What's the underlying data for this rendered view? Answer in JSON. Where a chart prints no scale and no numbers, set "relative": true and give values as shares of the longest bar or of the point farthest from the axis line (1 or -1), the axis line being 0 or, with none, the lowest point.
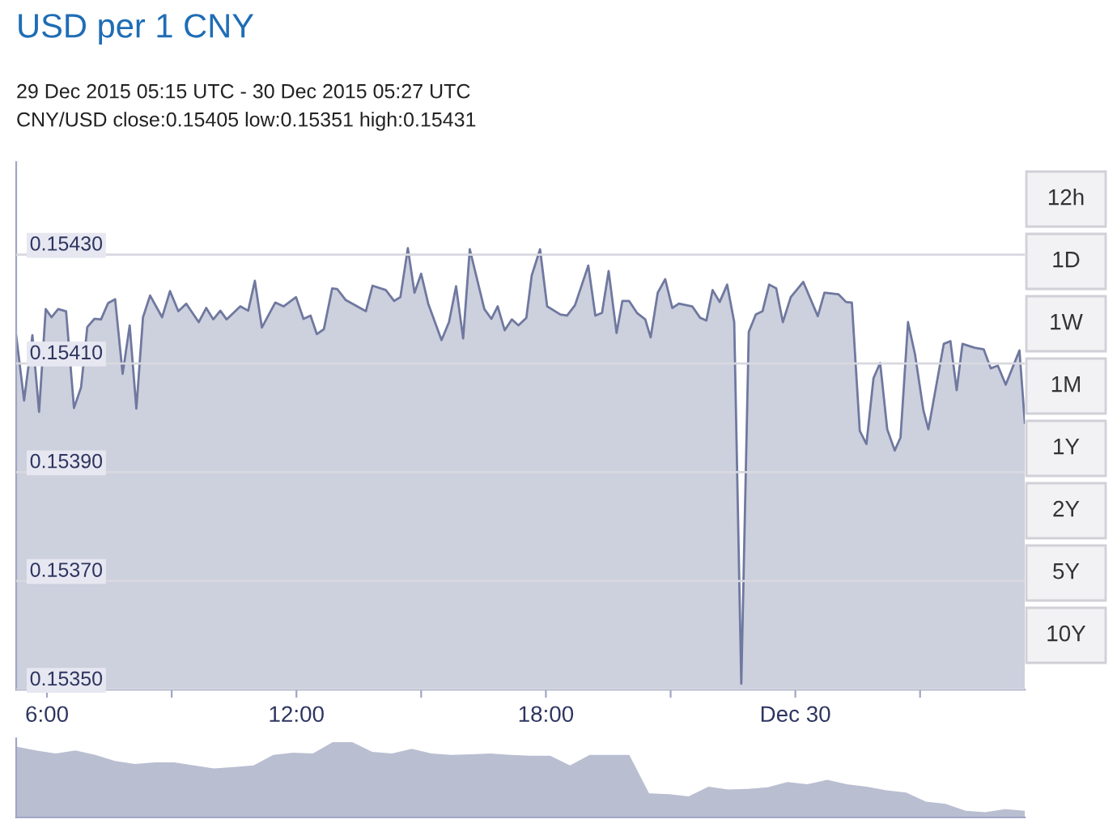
{
  "chart_data": [
    {
      "type": "area",
      "title": "USD per 1 CNY",
      "subtitle": "29 Dec 2015 05:15 UTC - 30 Dec 2015 05:27 UTC",
      "annotations": [
        "CNY/USD close:0.15405 low:0.15351 high:0.15431",
        "12h",
        "1D",
        "1W",
        "1M",
        "1Y",
        "2Y",
        "5Y",
        "10Y"
      ],
      "x": [
        5.26,
        5.45,
        5.65,
        5.81,
        5.97,
        6.11,
        6.27,
        6.46,
        6.65,
        6.82,
        6.97,
        7.14,
        7.3,
        7.47,
        7.64,
        7.82,
        7.99,
        8.15,
        8.31,
        8.48,
        8.77,
        8.96,
        9.16,
        9.35,
        9.65,
        9.83,
        10.0,
        10.17,
        10.32,
        10.65,
        10.84,
        11.0,
        11.17,
        11.49,
        11.69,
        11.99,
        12.17,
        12.34,
        12.49,
        12.66,
        12.86,
        12.98,
        13.18,
        13.67,
        13.83,
        14.15,
        14.35,
        14.5,
        14.68,
        14.84,
        15.0,
        15.17,
        15.49,
        15.67,
        15.84,
        16.01,
        16.17,
        16.52,
        16.69,
        16.84,
        17.01,
        17.18,
        17.34,
        17.53,
        17.66,
        17.86,
        18.03,
        18.35,
        18.51,
        18.7,
        19.02,
        19.19,
        19.35,
        19.51,
        19.7,
        19.84,
        20.0,
        20.19,
        20.39,
        20.52,
        20.69,
        20.87,
        21.04,
        21.2,
        21.52,
        21.71,
        21.86,
        22.01,
        22.18,
        22.36,
        22.53,
        22.7,
        22.88,
        23.05,
        23.21,
        23.37,
        23.54,
        23.7,
        23.89,
        24.19,
        24.54,
        24.7,
        25.04,
        25.22,
        25.36,
        25.55,
        25.71,
        25.88,
        26.04,
        26.21,
        26.39,
        26.53,
        26.71,
        26.88,
        27.08,
        27.2,
        27.4,
        27.57,
        27.73,
        27.88,
        28.02,
        28.31,
        28.53,
        28.7,
        28.87,
        29.06,
        29.39,
        29.52
      ],
      "series": [
        {
          "color": "#6f789f",
          "values": [
            0.154151,
            0.154032,
            0.154152,
            0.154011,
            0.1542,
            0.154185,
            0.1542,
            0.154196,
            0.154018,
            0.154056,
            0.154167,
            0.154182,
            0.154181,
            0.154211,
            0.154218,
            0.154081,
            0.15417,
            0.154017,
            0.154185,
            0.154225,
            0.154185,
            0.154233,
            0.154196,
            0.15421,
            0.154176,
            0.154202,
            0.154181,
            0.154197,
            0.154181,
            0.154205,
            0.154197,
            0.154252,
            0.154166,
            0.154212,
            0.154205,
            0.154222,
            0.154182,
            0.154188,
            0.154154,
            0.154163,
            0.154238,
            0.154237,
            0.154217,
            0.154196,
            0.154243,
            0.154235,
            0.154215,
            0.154222,
            0.154312,
            0.15423,
            0.154265,
            0.15421,
            0.154143,
            0.154176,
            0.154242,
            0.154146,
            0.15431,
            0.1542,
            0.154182,
            0.154205,
            0.154161,
            0.154181,
            0.15417,
            0.154184,
            0.154262,
            0.15431,
            0.154205,
            0.15419,
            0.154188,
            0.154207,
            0.15428,
            0.154188,
            0.154193,
            0.15427,
            0.154156,
            0.154215,
            0.154215,
            0.154193,
            0.154181,
            0.154148,
            0.15423,
            0.154255,
            0.154202,
            0.15421,
            0.154205,
            0.154184,
            0.154179,
            0.154235,
            0.154213,
            0.154245,
            0.154176,
            0.153511,
            0.154158,
            0.15419,
            0.154196,
            0.154245,
            0.154238,
            0.154176,
            0.154222,
            0.15425,
            0.154187,
            0.15423,
            0.154227,
            0.154213,
            0.154212,
            0.153976,
            0.153952,
            0.154073,
            0.154101,
            0.153979,
            0.15394,
            0.153964,
            0.154176,
            0.154116,
            0.154014,
            0.153979,
            0.154064,
            0.154136,
            0.154141,
            0.154051,
            0.154136,
            0.154129,
            0.154126,
            0.154091,
            0.154096,
            0.154061,
            0.154124,
            0.153991
          ]
        }
      ],
      "xlim": [
        5.26,
        29.52
      ],
      "xticks": [
        {
          "value": 6,
          "label": "6:00"
        },
        {
          "value": 9,
          "label": null
        },
        {
          "value": 12,
          "label": "12:00"
        },
        {
          "value": 15,
          "label": null
        },
        {
          "value": 18,
          "label": "18:00"
        },
        {
          "value": 21,
          "label": null
        },
        {
          "value": 24,
          "label": "Dec 30"
        },
        {
          "value": 27,
          "label": null
        }
      ],
      "ylim": [
        0.1535,
        0.15447
      ],
      "yticks": [
        {
          "value": 0.1535,
          "label": "0.15350"
        },
        {
          "value": 0.1537,
          "label": "0.15370"
        },
        {
          "value": 0.1539,
          "label": "0.15390"
        },
        {
          "value": 0.1541,
          "label": "0.15410"
        },
        {
          "value": 0.1543,
          "label": "0.15430"
        }
      ],
      "grid": "y"
    },
    {
      "type": "area",
      "relative": true,
      "categories": [
        null,
        null,
        null,
        null,
        null,
        null,
        null,
        null,
        null,
        null,
        null,
        null,
        null,
        null,
        null,
        null,
        null,
        null,
        null,
        null,
        null,
        null,
        null,
        null,
        null,
        null,
        null,
        null,
        null,
        null,
        null,
        null,
        null,
        null,
        null,
        null,
        null,
        null,
        null,
        null,
        null,
        null,
        null,
        null,
        null,
        null,
        null,
        null,
        null,
        null,
        null,
        null
      ],
      "series": [
        {
          "color": "#b9bed1",
          "values": [
            0.94,
            0.89,
            0.85,
            0.89,
            0.83,
            0.75,
            0.71,
            0.73,
            0.73,
            0.69,
            0.65,
            0.67,
            0.69,
            0.83,
            0.86,
            0.85,
            1,
            1,
            0.87,
            0.85,
            0.91,
            0.85,
            0.83,
            0.84,
            0.85,
            0.83,
            0.82,
            0.82,
            0.69,
            0.83,
            0.83,
            0.83,
            0.32,
            0.31,
            0.28,
            0.41,
            0.37,
            0.38,
            0.4,
            0.47,
            0.44,
            0.5,
            0.44,
            0.41,
            0.36,
            0.33,
            0.21,
            0.18,
            0.09,
            0.07,
            0.11,
            0.09
          ]
        }
      ]
    }
  ]
}
